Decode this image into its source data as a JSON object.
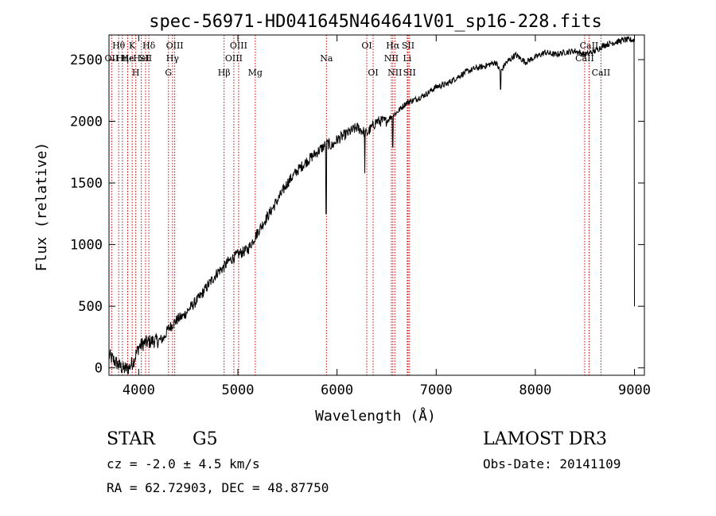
{
  "chart_data": {
    "type": "line",
    "title": "spec-56971-HD041645N464641V01_sp16-228.fits",
    "xlabel": "Wavelength (Å)",
    "ylabel": "Flux (relative)",
    "xlim": [
      3700,
      9100
    ],
    "ylim": [
      -60,
      2700
    ],
    "xticks": [
      4000,
      5000,
      6000,
      7000,
      8000,
      9000
    ],
    "yticks": [
      0,
      500,
      1000,
      1500,
      2000,
      2500
    ],
    "series": [
      {
        "name": "flux",
        "x": [
          3700,
          3750,
          3800,
          3850,
          3900,
          3950,
          4000,
          4050,
          4100,
          4150,
          4200,
          4250,
          4300,
          4350,
          4400,
          4450,
          4500,
          4600,
          4700,
          4800,
          4850,
          4900,
          5000,
          5100,
          5200,
          5300,
          5400,
          5500,
          5600,
          5700,
          5800,
          5900,
          5950,
          6000,
          6100,
          6200,
          6300,
          6400,
          6500,
          6560,
          6600,
          6700,
          6800,
          6900,
          7000,
          7100,
          7200,
          7300,
          7400,
          7500,
          7600,
          7650,
          7700,
          7800,
          7900,
          8000,
          8100,
          8200,
          8300,
          8400,
          8500,
          8600,
          8700,
          8800,
          8900,
          9000
        ],
        "y": [
          100,
          60,
          20,
          -10,
          0,
          60,
          170,
          200,
          210,
          220,
          220,
          240,
          320,
          360,
          400,
          420,
          470,
          560,
          670,
          780,
          810,
          860,
          920,
          960,
          1100,
          1230,
          1360,
          1500,
          1600,
          1680,
          1750,
          1820,
          1800,
          1850,
          1900,
          1950,
          1900,
          2000,
          2000,
          2050,
          2070,
          2150,
          2180,
          2220,
          2280,
          2300,
          2350,
          2400,
          2430,
          2450,
          2480,
          2400,
          2470,
          2540,
          2480,
          2520,
          2560,
          2540,
          2560,
          2570,
          2540,
          2570,
          2620,
          2640,
          2660,
          2660
        ]
      }
    ],
    "absorption_dips": [
      {
        "x": 5890,
        "y": 1250
      },
      {
        "x": 6280,
        "y": 1580
      },
      {
        "x": 6563,
        "y": 1790
      },
      {
        "x": 7650,
        "y": 2260
      },
      {
        "x": 9000,
        "y": 500
      }
    ],
    "lines": [
      {
        "label": "Hθ",
        "x": 3798,
        "row": 0
      },
      {
        "label": "OII",
        "x": 3727,
        "row": 1
      },
      {
        "label": "Hη",
        "x": 3835,
        "row": 1
      },
      {
        "label": "K",
        "x": 3934,
        "row": 0
      },
      {
        "label": "Hε",
        "x": 3889,
        "row": 1
      },
      {
        "label": "H",
        "x": 3970,
        "row": 2
      },
      {
        "label": "He",
        "x": 3888,
        "row": 1
      },
      {
        "label": "HeI",
        "x": 4026,
        "row": 1
      },
      {
        "label": "SII",
        "x": 4069,
        "row": 1
      },
      {
        "label": "Hδ",
        "x": 4102,
        "row": 0
      },
      {
        "label": "OIII",
        "x": 4363,
        "row": 0
      },
      {
        "label": "Hγ",
        "x": 4341,
        "row": 1
      },
      {
        "label": "G",
        "x": 4300,
        "row": 2
      },
      {
        "label": "Hβ",
        "x": 4861,
        "row": 2
      },
      {
        "label": "OIII",
        "x": 5007,
        "row": 0
      },
      {
        "label": "OIII",
        "x": 4959,
        "row": 1
      },
      {
        "label": "Mg",
        "x": 5175,
        "row": 2
      },
      {
        "label": "Na",
        "x": 5893,
        "row": 1
      },
      {
        "label": "OI",
        "x": 6300,
        "row": 0
      },
      {
        "label": "OI",
        "x": 6364,
        "row": 2
      },
      {
        "label": "Hα",
        "x": 6563,
        "row": 0
      },
      {
        "label": "NII",
        "x": 6548,
        "row": 1
      },
      {
        "label": "NII",
        "x": 6583,
        "row": 2
      },
      {
        "label": "SII",
        "x": 6717,
        "row": 0
      },
      {
        "label": "Li",
        "x": 6708,
        "row": 1
      },
      {
        "label": "SII",
        "x": 6731,
        "row": 2
      },
      {
        "label": "CaII",
        "x": 8542,
        "row": 0
      },
      {
        "label": "CaII",
        "x": 8498,
        "row": 1
      },
      {
        "label": "CaII",
        "x": 8662,
        "row": 2
      }
    ],
    "line_color": "#cc0000"
  },
  "info": {
    "class": "STAR",
    "subclass": "G5",
    "survey": "LAMOST DR3",
    "cz": "cz = -2.0 ± 4.5 km/s",
    "obs_date": "Obs-Date: 20141109",
    "coords": "RA =  62.72903, DEC =  48.87750"
  }
}
